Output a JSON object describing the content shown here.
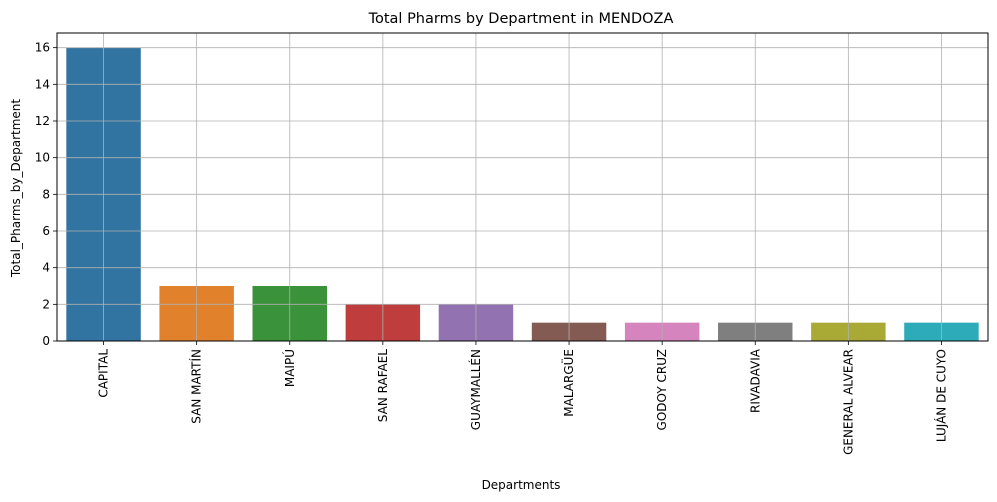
{
  "chart_data": {
    "type": "bar",
    "title": "Total Pharms by Department in MENDOZA",
    "xlabel": "Departments",
    "ylabel": "Total_Pharms_by_Department",
    "categories": [
      "CAPITAL",
      "SAN MARTÍN",
      "MAIPÚ",
      "SAN RAFAEL",
      "GUAYMALLÉN",
      "MALARGÜE",
      "GODOY CRUZ",
      "RIVADAVIA",
      "GENERAL ALVEAR",
      "LUJÁN DE CUYO"
    ],
    "values": [
      16,
      3,
      3,
      2,
      2,
      1,
      1,
      1,
      1,
      1
    ],
    "colors": [
      "#3274a1",
      "#e1812c",
      "#3a923a",
      "#c03d3e",
      "#9372b2",
      "#845b53",
      "#d684bd",
      "#7f7f7f",
      "#a9aa35",
      "#2eabb8"
    ],
    "ylim": [
      0,
      16.8
    ],
    "yticks": [
      0,
      2,
      4,
      6,
      8,
      10,
      12,
      14,
      16
    ],
    "grid": true
  }
}
